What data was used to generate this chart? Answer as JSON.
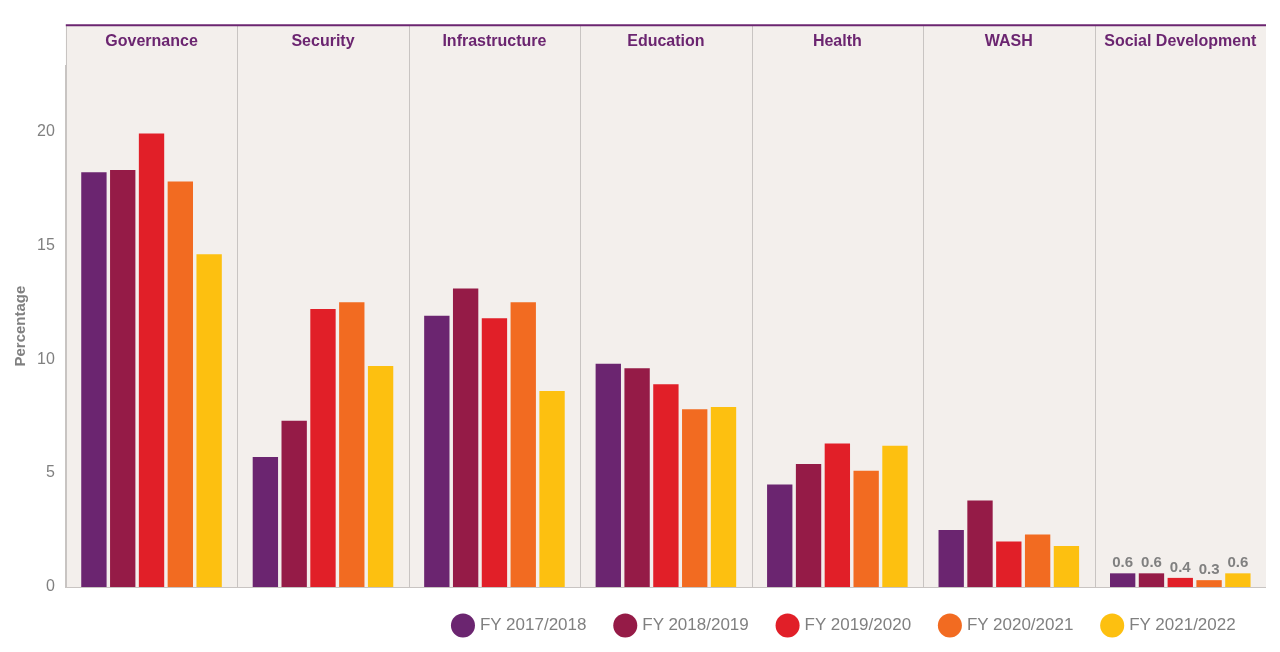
{
  "chart_data": {
    "type": "bar",
    "ylabel": "Percentage",
    "categories": [
      "Governance",
      "Security",
      "Infrastructure",
      "Education",
      "Health",
      "WASH",
      "Social Development"
    ],
    "series": [
      {
        "name": "FY 2017/2018",
        "color": "#6b2570",
        "values": [
          18.2,
          5.7,
          11.9,
          9.8,
          4.5,
          2.5,
          0.6
        ],
        "value_labels": [
          null,
          null,
          null,
          null,
          null,
          null,
          "0.6"
        ]
      },
      {
        "name": "FY 2018/2019",
        "color": "#951b47",
        "values": [
          18.3,
          7.3,
          13.1,
          9.6,
          5.4,
          3.8,
          0.6
        ],
        "value_labels": [
          null,
          null,
          null,
          null,
          null,
          null,
          "0.6"
        ]
      },
      {
        "name": "FY 2019/2020",
        "color": "#e11f28",
        "values": [
          19.9,
          12.2,
          11.8,
          8.9,
          6.3,
          2.0,
          0.4
        ],
        "value_labels": [
          null,
          null,
          null,
          null,
          null,
          null,
          "0.4"
        ]
      },
      {
        "name": "FY 2020/2021",
        "color": "#f26b21",
        "values": [
          17.8,
          12.5,
          12.5,
          7.8,
          5.1,
          2.3,
          0.3
        ],
        "value_labels": [
          null,
          null,
          null,
          null,
          null,
          null,
          "0.3"
        ]
      },
      {
        "name": "FY 2021/2022",
        "color": "#fdc010",
        "values": [
          14.6,
          9.7,
          8.6,
          7.9,
          6.2,
          1.8,
          0.6
        ],
        "value_labels": [
          null,
          null,
          null,
          null,
          null,
          null,
          "0.6"
        ]
      }
    ],
    "ylim": [
      0,
      22.9
    ],
    "yticks": [
      0,
      5,
      10,
      15,
      20
    ],
    "grid": false,
    "legend": "bottom right"
  }
}
